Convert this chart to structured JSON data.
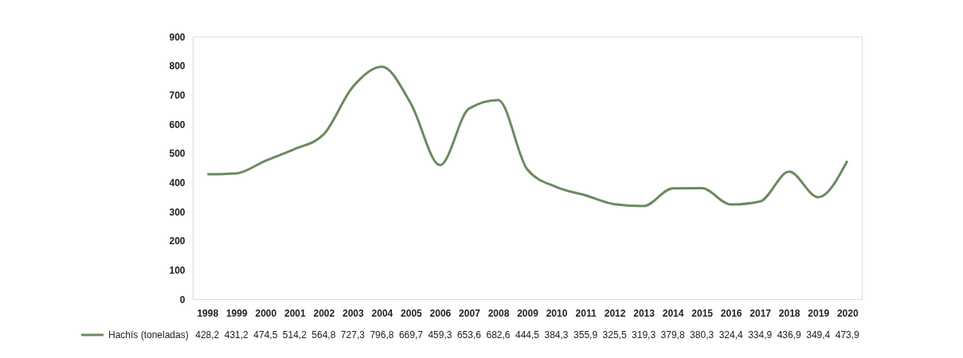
{
  "chart_data": {
    "type": "line",
    "categories": [
      "1998",
      "1999",
      "2000",
      "2001",
      "2002",
      "2003",
      "2004",
      "2005",
      "2006",
      "2007",
      "2008",
      "2009",
      "2010",
      "2011",
      "2012",
      "2013",
      "2014",
      "2015",
      "2016",
      "2017",
      "2018",
      "2019",
      "2020"
    ],
    "series": [
      {
        "name": "Hachís (toneladas)",
        "color": "#6b8a5e",
        "values": [
          428.2,
          431.2,
          474.5,
          514.2,
          564.8,
          727.3,
          796.8,
          669.7,
          459.3,
          653.6,
          682.6,
          444.5,
          384.3,
          355.9,
          325.5,
          319.3,
          379.8,
          380.3,
          324.4,
          334.9,
          436.9,
          349.4,
          473.9
        ],
        "value_labels": [
          "428,2",
          "431,2",
          "474,5",
          "514,2",
          "564,8",
          "727,3",
          "796,8",
          "669,7",
          "459,3",
          "653,6",
          "682,6",
          "444,5",
          "384,3",
          "355,9",
          "325,5",
          "319,3",
          "379,8",
          "380,3",
          "324,4",
          "334,9",
          "436,9",
          "349,4",
          "473,9"
        ]
      }
    ],
    "ylim": [
      0,
      900
    ],
    "yticks": [
      0,
      100,
      200,
      300,
      400,
      500,
      600,
      700,
      800,
      900
    ],
    "grid": false,
    "legend": "bottom left",
    "line_style": "solid"
  }
}
